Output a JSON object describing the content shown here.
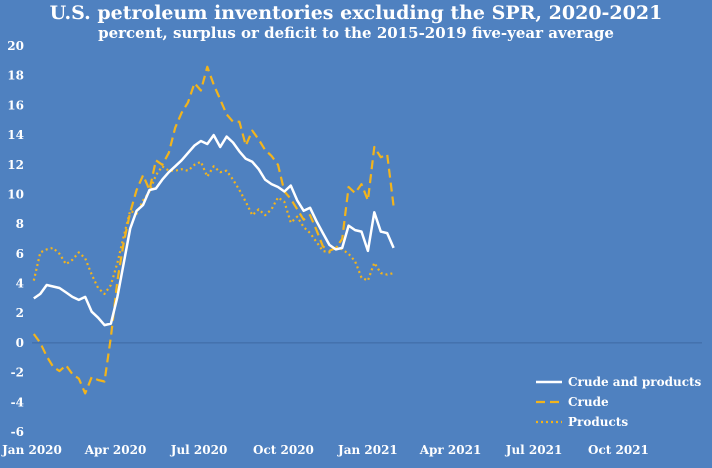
{
  "chart_data": {
    "type": "line",
    "title": "U.S. petroleum inventories excluding the SPR, 2020-2021",
    "subtitle": "percent, surplus or deficit to the 2015-2019 five-year average",
    "xlabel": "",
    "ylabel": "",
    "xlim": [
      "2020-01-01",
      "2021-12-31"
    ],
    "ylim": [
      -6,
      20
    ],
    "y_ticks": [
      20,
      18,
      16,
      14,
      12,
      10,
      8,
      6,
      4,
      2,
      0,
      -2,
      -4,
      -6
    ],
    "x_ticks": [
      {
        "date": "2020-01-01",
        "label": "Jan 2020"
      },
      {
        "date": "2020-04-01",
        "label": "Apr 2020"
      },
      {
        "date": "2020-07-01",
        "label": "Jul 2020"
      },
      {
        "date": "2020-10-01",
        "label": "Oct 2020"
      },
      {
        "date": "2021-01-01",
        "label": "Jan 2021"
      },
      {
        "date": "2021-04-01",
        "label": "Apr 2021"
      },
      {
        "date": "2021-07-01",
        "label": "Jul 2021"
      },
      {
        "date": "2021-10-01",
        "label": "Oct 2021"
      }
    ],
    "grid": false,
    "legend_position": "bottom-right",
    "series": [
      {
        "name": "Crude and products",
        "color": "#ffffff",
        "style": "solid",
        "points": [
          [
            "2020-01-03",
            3.0
          ],
          [
            "2020-01-10",
            3.3
          ],
          [
            "2020-01-17",
            3.9
          ],
          [
            "2020-01-24",
            3.8
          ],
          [
            "2020-01-31",
            3.7
          ],
          [
            "2020-02-07",
            3.4
          ],
          [
            "2020-02-14",
            3.1
          ],
          [
            "2020-02-21",
            2.9
          ],
          [
            "2020-02-28",
            3.1
          ],
          [
            "2020-03-06",
            2.1
          ],
          [
            "2020-03-13",
            1.7
          ],
          [
            "2020-03-20",
            1.2
          ],
          [
            "2020-03-27",
            1.3
          ],
          [
            "2020-04-03",
            3.1
          ],
          [
            "2020-04-10",
            5.4
          ],
          [
            "2020-04-17",
            7.7
          ],
          [
            "2020-04-24",
            8.9
          ],
          [
            "2020-05-01",
            9.3
          ],
          [
            "2020-05-08",
            10.3
          ],
          [
            "2020-05-15",
            10.4
          ],
          [
            "2020-05-22",
            11.0
          ],
          [
            "2020-05-29",
            11.5
          ],
          [
            "2020-06-05",
            11.9
          ],
          [
            "2020-06-12",
            12.3
          ],
          [
            "2020-06-19",
            12.8
          ],
          [
            "2020-06-26",
            13.3
          ],
          [
            "2020-07-03",
            13.6
          ],
          [
            "2020-07-10",
            13.4
          ],
          [
            "2020-07-17",
            14.0
          ],
          [
            "2020-07-24",
            13.2
          ],
          [
            "2020-07-31",
            13.9
          ],
          [
            "2020-08-07",
            13.5
          ],
          [
            "2020-08-14",
            12.9
          ],
          [
            "2020-08-21",
            12.4
          ],
          [
            "2020-08-28",
            12.2
          ],
          [
            "2020-09-04",
            11.7
          ],
          [
            "2020-09-11",
            11.0
          ],
          [
            "2020-09-18",
            10.7
          ],
          [
            "2020-09-25",
            10.5
          ],
          [
            "2020-10-02",
            10.2
          ],
          [
            "2020-10-09",
            10.6
          ],
          [
            "2020-10-16",
            9.6
          ],
          [
            "2020-10-23",
            8.9
          ],
          [
            "2020-10-30",
            9.1
          ],
          [
            "2020-11-06",
            8.2
          ],
          [
            "2020-11-13",
            7.4
          ],
          [
            "2020-11-20",
            6.6
          ],
          [
            "2020-11-27",
            6.3
          ],
          [
            "2020-12-04",
            6.4
          ],
          [
            "2020-12-11",
            7.9
          ],
          [
            "2020-12-18",
            7.6
          ],
          [
            "2020-12-25",
            7.5
          ],
          [
            "2021-01-01",
            6.2
          ],
          [
            "2021-01-08",
            8.8
          ],
          [
            "2021-01-15",
            7.5
          ],
          [
            "2021-01-22",
            7.4
          ],
          [
            "2021-01-29",
            6.4
          ]
        ]
      },
      {
        "name": "Crude",
        "color": "#f2b41c",
        "style": "dashed",
        "points": [
          [
            "2020-01-03",
            0.6
          ],
          [
            "2020-01-10",
            0.0
          ],
          [
            "2020-01-17",
            -0.9
          ],
          [
            "2020-01-24",
            -1.6
          ],
          [
            "2020-01-31",
            -1.9
          ],
          [
            "2020-02-07",
            -1.5
          ],
          [
            "2020-02-14",
            -2.1
          ],
          [
            "2020-02-21",
            -2.4
          ],
          [
            "2020-02-28",
            -3.4
          ],
          [
            "2020-03-06",
            -2.3
          ],
          [
            "2020-03-13",
            -2.5
          ],
          [
            "2020-03-20",
            -2.6
          ],
          [
            "2020-03-27",
            0.4
          ],
          [
            "2020-04-03",
            4.2
          ],
          [
            "2020-04-10",
            6.8
          ],
          [
            "2020-04-17",
            8.8
          ],
          [
            "2020-04-24",
            10.3
          ],
          [
            "2020-05-01",
            11.3
          ],
          [
            "2020-05-08",
            10.3
          ],
          [
            "2020-05-15",
            12.3
          ],
          [
            "2020-05-22",
            12.0
          ],
          [
            "2020-05-29",
            12.8
          ],
          [
            "2020-06-05",
            14.5
          ],
          [
            "2020-06-12",
            15.5
          ],
          [
            "2020-06-19",
            16.2
          ],
          [
            "2020-06-26",
            17.5
          ],
          [
            "2020-07-03",
            17.0
          ],
          [
            "2020-07-10",
            18.6
          ],
          [
            "2020-07-17",
            17.4
          ],
          [
            "2020-07-24",
            16.4
          ],
          [
            "2020-07-31",
            15.4
          ],
          [
            "2020-08-07",
            14.9
          ],
          [
            "2020-08-14",
            14.9
          ],
          [
            "2020-08-21",
            13.3
          ],
          [
            "2020-08-28",
            14.3
          ],
          [
            "2020-09-04",
            13.7
          ],
          [
            "2020-09-11",
            13.0
          ],
          [
            "2020-09-18",
            12.6
          ],
          [
            "2020-09-25",
            12.0
          ],
          [
            "2020-10-02",
            10.2
          ],
          [
            "2020-10-09",
            9.7
          ],
          [
            "2020-10-16",
            9.0
          ],
          [
            "2020-10-23",
            8.3
          ],
          [
            "2020-10-30",
            8.6
          ],
          [
            "2020-11-06",
            7.6
          ],
          [
            "2020-11-13",
            6.5
          ],
          [
            "2020-11-20",
            6.2
          ],
          [
            "2020-11-27",
            6.4
          ],
          [
            "2020-12-04",
            7.0
          ],
          [
            "2020-12-11",
            10.5
          ],
          [
            "2020-12-18",
            10.1
          ],
          [
            "2020-12-25",
            10.7
          ],
          [
            "2021-01-01",
            9.6
          ],
          [
            "2021-01-08",
            13.2
          ],
          [
            "2021-01-15",
            12.5
          ],
          [
            "2021-01-22",
            12.7
          ],
          [
            "2021-01-29",
            9.2
          ]
        ]
      },
      {
        "name": "Products",
        "color": "#f2b41c",
        "style": "dotted",
        "points": [
          [
            "2020-01-03",
            4.2
          ],
          [
            "2020-01-10",
            6.1
          ],
          [
            "2020-01-17",
            6.3
          ],
          [
            "2020-01-24",
            6.4
          ],
          [
            "2020-01-31",
            6.0
          ],
          [
            "2020-02-07",
            5.3
          ],
          [
            "2020-02-14",
            5.6
          ],
          [
            "2020-02-21",
            6.1
          ],
          [
            "2020-02-28",
            5.7
          ],
          [
            "2020-03-06",
            4.6
          ],
          [
            "2020-03-13",
            3.7
          ],
          [
            "2020-03-20",
            3.3
          ],
          [
            "2020-03-27",
            3.9
          ],
          [
            "2020-04-03",
            5.4
          ],
          [
            "2020-04-10",
            7.2
          ],
          [
            "2020-04-17",
            8.9
          ],
          [
            "2020-04-24",
            8.7
          ],
          [
            "2020-05-01",
            9.6
          ],
          [
            "2020-05-08",
            10.2
          ],
          [
            "2020-05-15",
            11.3
          ],
          [
            "2020-05-22",
            11.9
          ],
          [
            "2020-05-29",
            11.6
          ],
          [
            "2020-06-05",
            11.6
          ],
          [
            "2020-06-12",
            11.7
          ],
          [
            "2020-06-19",
            11.6
          ],
          [
            "2020-06-26",
            12.0
          ],
          [
            "2020-07-03",
            12.2
          ],
          [
            "2020-07-10",
            11.2
          ],
          [
            "2020-07-17",
            11.9
          ],
          [
            "2020-07-24",
            11.5
          ],
          [
            "2020-07-31",
            11.6
          ],
          [
            "2020-08-07",
            11.0
          ],
          [
            "2020-08-14",
            10.3
          ],
          [
            "2020-08-21",
            9.5
          ],
          [
            "2020-08-28",
            8.6
          ],
          [
            "2020-09-04",
            9.0
          ],
          [
            "2020-09-11",
            8.6
          ],
          [
            "2020-09-18",
            9.0
          ],
          [
            "2020-09-25",
            9.8
          ],
          [
            "2020-10-02",
            9.5
          ],
          [
            "2020-10-09",
            8.1
          ],
          [
            "2020-10-16",
            8.5
          ],
          [
            "2020-10-23",
            7.8
          ],
          [
            "2020-10-30",
            7.4
          ],
          [
            "2020-11-06",
            6.8
          ],
          [
            "2020-11-13",
            6.2
          ],
          [
            "2020-11-20",
            6.1
          ],
          [
            "2020-11-27",
            6.5
          ],
          [
            "2020-12-04",
            6.3
          ],
          [
            "2020-12-11",
            6.0
          ],
          [
            "2020-12-18",
            5.5
          ],
          [
            "2020-12-25",
            4.4
          ],
          [
            "2021-01-01",
            4.2
          ],
          [
            "2021-01-08",
            5.4
          ],
          [
            "2021-01-15",
            4.7
          ],
          [
            "2021-01-22",
            4.6
          ],
          [
            "2021-01-29",
            4.7
          ]
        ]
      }
    ]
  }
}
